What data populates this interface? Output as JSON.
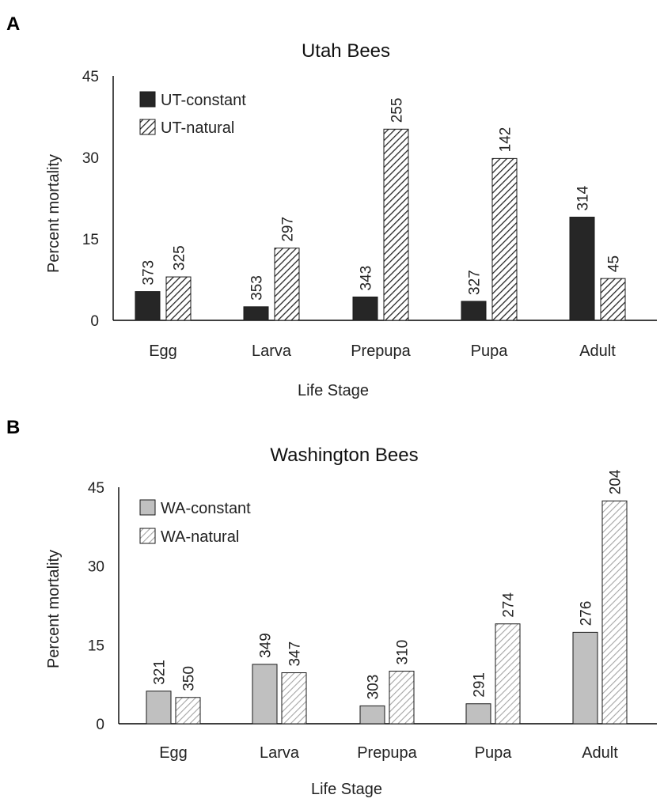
{
  "panels": [
    {
      "letter": "A"
    },
    {
      "letter": "B"
    }
  ],
  "colors": {
    "ut_constant": "#262626",
    "ut_natural_stroke": "#262626",
    "wa_constant": "#c0c0c0",
    "wa_natural_stroke": "#9a9a9a",
    "bar_outline": "#1a1a1a",
    "axis": "#000000"
  },
  "chart_data": [
    {
      "type": "bar",
      "title": "Utah Bees",
      "xlabel": "Life Stage",
      "ylabel": "Percent mortality",
      "ylim": [
        0,
        45
      ],
      "yticks": [
        "0",
        "15",
        "30",
        "45"
      ],
      "categories": [
        "Egg",
        "Larva",
        "Prepupa",
        "Pupa",
        "Adult"
      ],
      "legend_position": "top-left",
      "series": [
        {
          "name": "UT-constant",
          "values": [
            5.3,
            2.5,
            4.3,
            3.5,
            19.0
          ],
          "labels": [
            "373",
            "353",
            "343",
            "327",
            "314"
          ],
          "pattern": "solid-dark"
        },
        {
          "name": "UT-natural",
          "values": [
            8.0,
            13.3,
            35.2,
            29.8,
            7.7
          ],
          "labels": [
            "325",
            "297",
            "255",
            "142",
            "45"
          ],
          "pattern": "hatch-dark"
        }
      ]
    },
    {
      "type": "bar",
      "title": "Washington Bees",
      "xlabel": "Life Stage",
      "ylabel": "Percent mortality",
      "ylim": [
        0,
        45
      ],
      "yticks": [
        "0",
        "15",
        "30",
        "45"
      ],
      "categories": [
        "Egg",
        "Larva",
        "Prepupa",
        "Pupa",
        "Adult"
      ],
      "legend_position": "top-left",
      "series": [
        {
          "name": "WA-constant",
          "values": [
            6.2,
            11.3,
            3.4,
            3.8,
            17.4
          ],
          "labels": [
            "321",
            "349",
            "303",
            "291",
            "276"
          ],
          "pattern": "solid-light"
        },
        {
          "name": "WA-natural",
          "values": [
            5.0,
            9.7,
            10.0,
            19.0,
            42.4
          ],
          "labels": [
            "350",
            "347",
            "310",
            "274",
            "204"
          ],
          "pattern": "hatch-light"
        }
      ]
    }
  ]
}
